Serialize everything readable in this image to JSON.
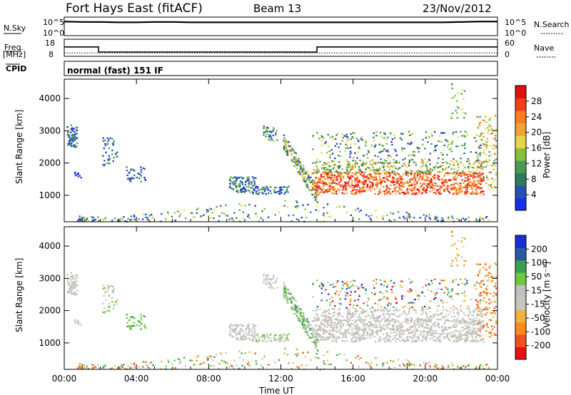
{
  "header": {
    "station": "Fort Hays East (fitACF)",
    "beam": "Beam 13",
    "date": "23/Nov/2012"
  },
  "left_labels": {
    "nsky": "N.Sky",
    "freq_a": "Freq.",
    "freq_b": "[MHz]",
    "cpid": "CPID"
  },
  "right_labels": {
    "nsearch": "N.Search",
    "nave": "Nave"
  },
  "cpid_text": "normal (fast) 151 IF",
  "colors": {
    "power": [
      "#1a2ee8",
      "#2850b4",
      "#2f7a5a",
      "#4a9a55",
      "#86c03c",
      "#e7d64a",
      "#f2a234",
      "#ff7a20",
      "#f04018",
      "#e01010"
    ],
    "velocity": [
      "#e81010",
      "#f05020",
      "#ff8a1a",
      "#f0b43a",
      "#c8c6bc",
      "#c0c0c0",
      "#70c840",
      "#3aa050",
      "#2a5aa0",
      "#1a2ed8"
    ]
  },
  "chart_data": [
    {
      "type": "line",
      "title": "",
      "series": [
        {
          "name": "N.Sky",
          "values": [
            3.8,
            3.7,
            3.7,
            3.6,
            3.6,
            3.7,
            3.7,
            3.6,
            3.6,
            3.6,
            3.6,
            3.6,
            3.6,
            3.6,
            3.6,
            3.6,
            3.6,
            3.6,
            3.6,
            3.6,
            3.6,
            3.6,
            3.7,
            3.8,
            3.8
          ]
        },
        {
          "name": "N.Search",
          "values": [
            3.7,
            3.6,
            3.6,
            3.5,
            3.5,
            3.6,
            3.6,
            3.5,
            3.5,
            3.5,
            3.5,
            3.5,
            3.5,
            3.5,
            3.5,
            3.5,
            3.5,
            3.5,
            3.5,
            3.5,
            3.5,
            3.5,
            3.6,
            3.7,
            3.7
          ]
        }
      ],
      "x": [
        0,
        1,
        2,
        3,
        4,
        5,
        6,
        7,
        8,
        9,
        10,
        11,
        12,
        13,
        14,
        15,
        16,
        17,
        18,
        19,
        20,
        21,
        22,
        23,
        24
      ],
      "y_left_ticks": [
        "10^5",
        "10^0"
      ],
      "y_right_ticks": [
        "10^5",
        "10^0"
      ]
    },
    {
      "type": "line",
      "series": [
        {
          "name": "Freq.",
          "x": [
            0,
            1.9,
            1.9,
            14,
            14,
            24
          ],
          "values": [
            13.5,
            13.5,
            10.5,
            10.5,
            13.5,
            13.5
          ]
        },
        {
          "name": "Nave",
          "x": [
            0,
            24
          ],
          "values": [
            10,
            10
          ]
        }
      ],
      "y_left_ticks": [
        "18",
        "8"
      ],
      "y_right_ticks": [
        "60",
        "0"
      ]
    },
    {
      "type": "heatmap",
      "parameter": "Power",
      "ylabel": "Slant Range [km]",
      "ylim": [
        180,
        4600
      ],
      "yticks": [
        "1000",
        "2000",
        "3000",
        "4000"
      ],
      "colorbar_label": "Power [dB]",
      "colorbar_ticks": [
        "4",
        "8",
        "12",
        "16",
        "20",
        "24",
        "28"
      ],
      "colorbar_range": [
        0,
        32
      ]
    },
    {
      "type": "heatmap",
      "parameter": "Velocity",
      "ylabel": "Slant Range [km]",
      "xlabel": "Time UT",
      "xticks": [
        "00:00",
        "04:00",
        "08:00",
        "12:00",
        "16:00",
        "20:00",
        "00:00"
      ],
      "xlim": [
        0,
        24
      ],
      "ylim": [
        180,
        4600
      ],
      "yticks": [
        "1000",
        "2000",
        "3000",
        "4000"
      ],
      "colorbar_label": "Velocity [m s⁻¹]",
      "colorbar_ticks": [
        "200",
        "100",
        "50",
        "15",
        "-15",
        "-50",
        "-100",
        "-200"
      ]
    }
  ]
}
